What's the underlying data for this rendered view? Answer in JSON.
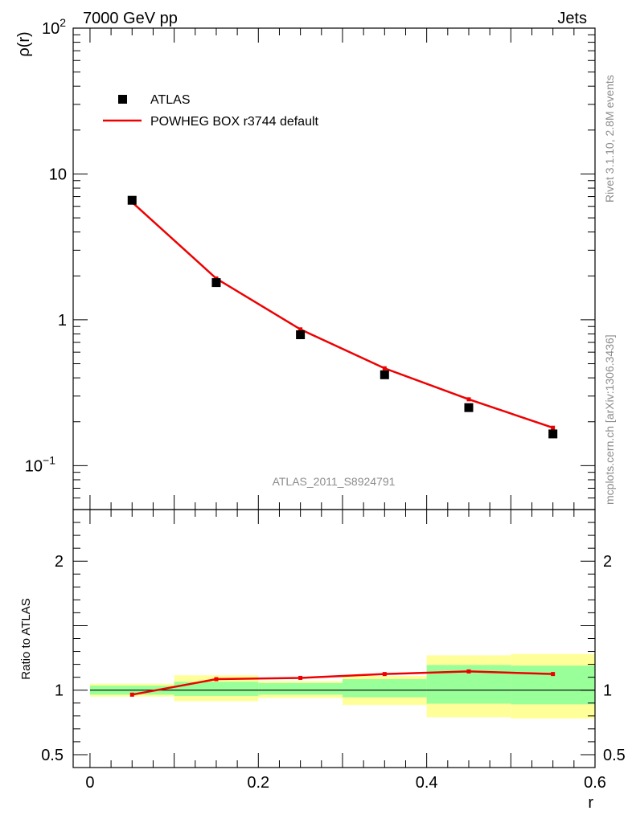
{
  "header": {
    "left": "7000 GeV pp",
    "right": "Jets"
  },
  "side_labels": {
    "rivet": "Rivet 3.1.10,  2.8M events",
    "mcplots": "mcplots.cern.ch [arXiv:1306.3436]"
  },
  "analysis_id": "ATLAS_2011_S8924791",
  "colors": {
    "data": "#000000",
    "mc": "#ee0000",
    "band_inner": "#99ff99",
    "band_outer": "#ffff99"
  },
  "chart_data": [
    {
      "type": "scatter",
      "panel": "main",
      "ylabel": "ρ(r)",
      "yscale": "log",
      "ylim": [
        0.05,
        100
      ],
      "xlim": [
        -0.02,
        0.6
      ],
      "yticks": [
        {
          "value": 100,
          "base": "10",
          "exp": "2"
        },
        {
          "value": 10,
          "base": "10",
          "exp": ""
        },
        {
          "value": 1,
          "base": "1",
          "exp": ""
        },
        {
          "value": 0.1,
          "base": "10",
          "exp": "−1"
        }
      ],
      "legend": [
        {
          "name": "ATLAS",
          "kind": "marker"
        },
        {
          "name": "POWHEG BOX r3744 default",
          "kind": "line"
        }
      ],
      "series": [
        {
          "name": "ATLAS",
          "x": [
            0.05,
            0.15,
            0.25,
            0.35,
            0.45,
            0.55
          ],
          "values": [
            6.6,
            1.8,
            0.79,
            0.42,
            0.25,
            0.165
          ]
        },
        {
          "name": "POWHEG BOX r3744 default",
          "x": [
            0.05,
            0.15,
            0.25,
            0.35,
            0.45,
            0.55
          ],
          "values": [
            6.4,
            1.92,
            0.86,
            0.465,
            0.285,
            0.182
          ]
        }
      ]
    },
    {
      "type": "line",
      "panel": "ratio",
      "ylabel": "Ratio to ATLAS",
      "xlabel": "r",
      "ylim": [
        0.4,
        2.4
      ],
      "xlim": [
        -0.02,
        0.6
      ],
      "xticks": [
        "0",
        "0.2",
        "0.4",
        "0.6"
      ],
      "xtick_values": [
        0,
        0.2,
        0.4,
        0.6
      ],
      "yticks": [
        "0.5",
        "1",
        "2"
      ],
      "ytick_values": [
        0.5,
        1,
        2
      ],
      "bins": [
        [
          0.0,
          0.1
        ],
        [
          0.1,
          0.2
        ],
        [
          0.2,
          0.3
        ],
        [
          0.3,
          0.4
        ],
        [
          0.4,
          0.5
        ],
        [
          0.5,
          0.6
        ]
      ],
      "band_inner": [
        [
          0.965,
          1.035
        ],
        [
          0.955,
          1.065
        ],
        [
          0.965,
          1.055
        ],
        [
          0.945,
          1.085
        ],
        [
          0.895,
          1.195
        ],
        [
          0.89,
          1.19
        ]
      ],
      "band_outer": [
        [
          0.95,
          1.05
        ],
        [
          0.915,
          1.115
        ],
        [
          0.94,
          1.07
        ],
        [
          0.885,
          1.11
        ],
        [
          0.79,
          1.27
        ],
        [
          0.78,
          1.28
        ]
      ],
      "series": [
        {
          "name": "POWHEG BOX r3744 default / ATLAS",
          "x": [
            0.05,
            0.15,
            0.25,
            0.35,
            0.45,
            0.55
          ],
          "values": [
            0.965,
            1.085,
            1.095,
            1.125,
            1.145,
            1.125
          ]
        }
      ]
    }
  ]
}
